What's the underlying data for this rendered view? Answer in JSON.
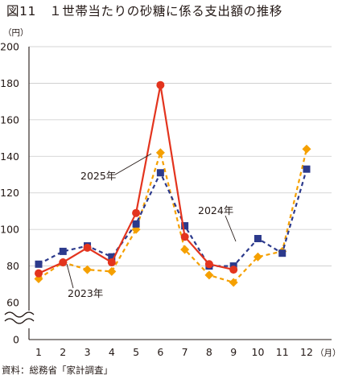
{
  "figure": {
    "title": "図11　１世帯当たりの砂糖に係る支出額の推移",
    "source": "資料：総務省「家計調査」"
  },
  "colors": {
    "series_2025": "#e3341e",
    "series_2024": "#2c3a8c",
    "series_2023": "#f5a000",
    "axis": "#231815",
    "grid": "#c9c9c9"
  },
  "chart_data": {
    "type": "line",
    "x": [
      1,
      2,
      3,
      4,
      5,
      6,
      7,
      8,
      9,
      10,
      11,
      12
    ],
    "xunit": "（月）",
    "yunit": "（円）",
    "ylim": [
      60,
      200
    ],
    "yticks": [
      60,
      80,
      100,
      120,
      140,
      160,
      180,
      200
    ],
    "ybase_label": "0",
    "axis_break": true,
    "grid": "horizontal",
    "series": [
      {
        "name": "2025年",
        "color": "#e3341e",
        "marker": "circle",
        "line": "solid",
        "values": [
          76,
          82,
          90,
          82,
          109,
          179,
          96,
          81,
          78,
          null,
          null,
          null
        ]
      },
      {
        "name": "2024年",
        "color": "#2c3a8c",
        "marker": "square",
        "line": "dashed",
        "values": [
          81,
          88,
          91,
          85,
          103,
          131,
          102,
          80,
          80,
          95,
          87,
          133
        ]
      },
      {
        "name": "2023年",
        "color": "#f5a000",
        "marker": "diamond",
        "line": "dashed",
        "values": [
          73,
          82,
          78,
          77,
          100,
          142,
          89,
          75,
          71,
          85,
          88,
          144
        ]
      }
    ]
  }
}
